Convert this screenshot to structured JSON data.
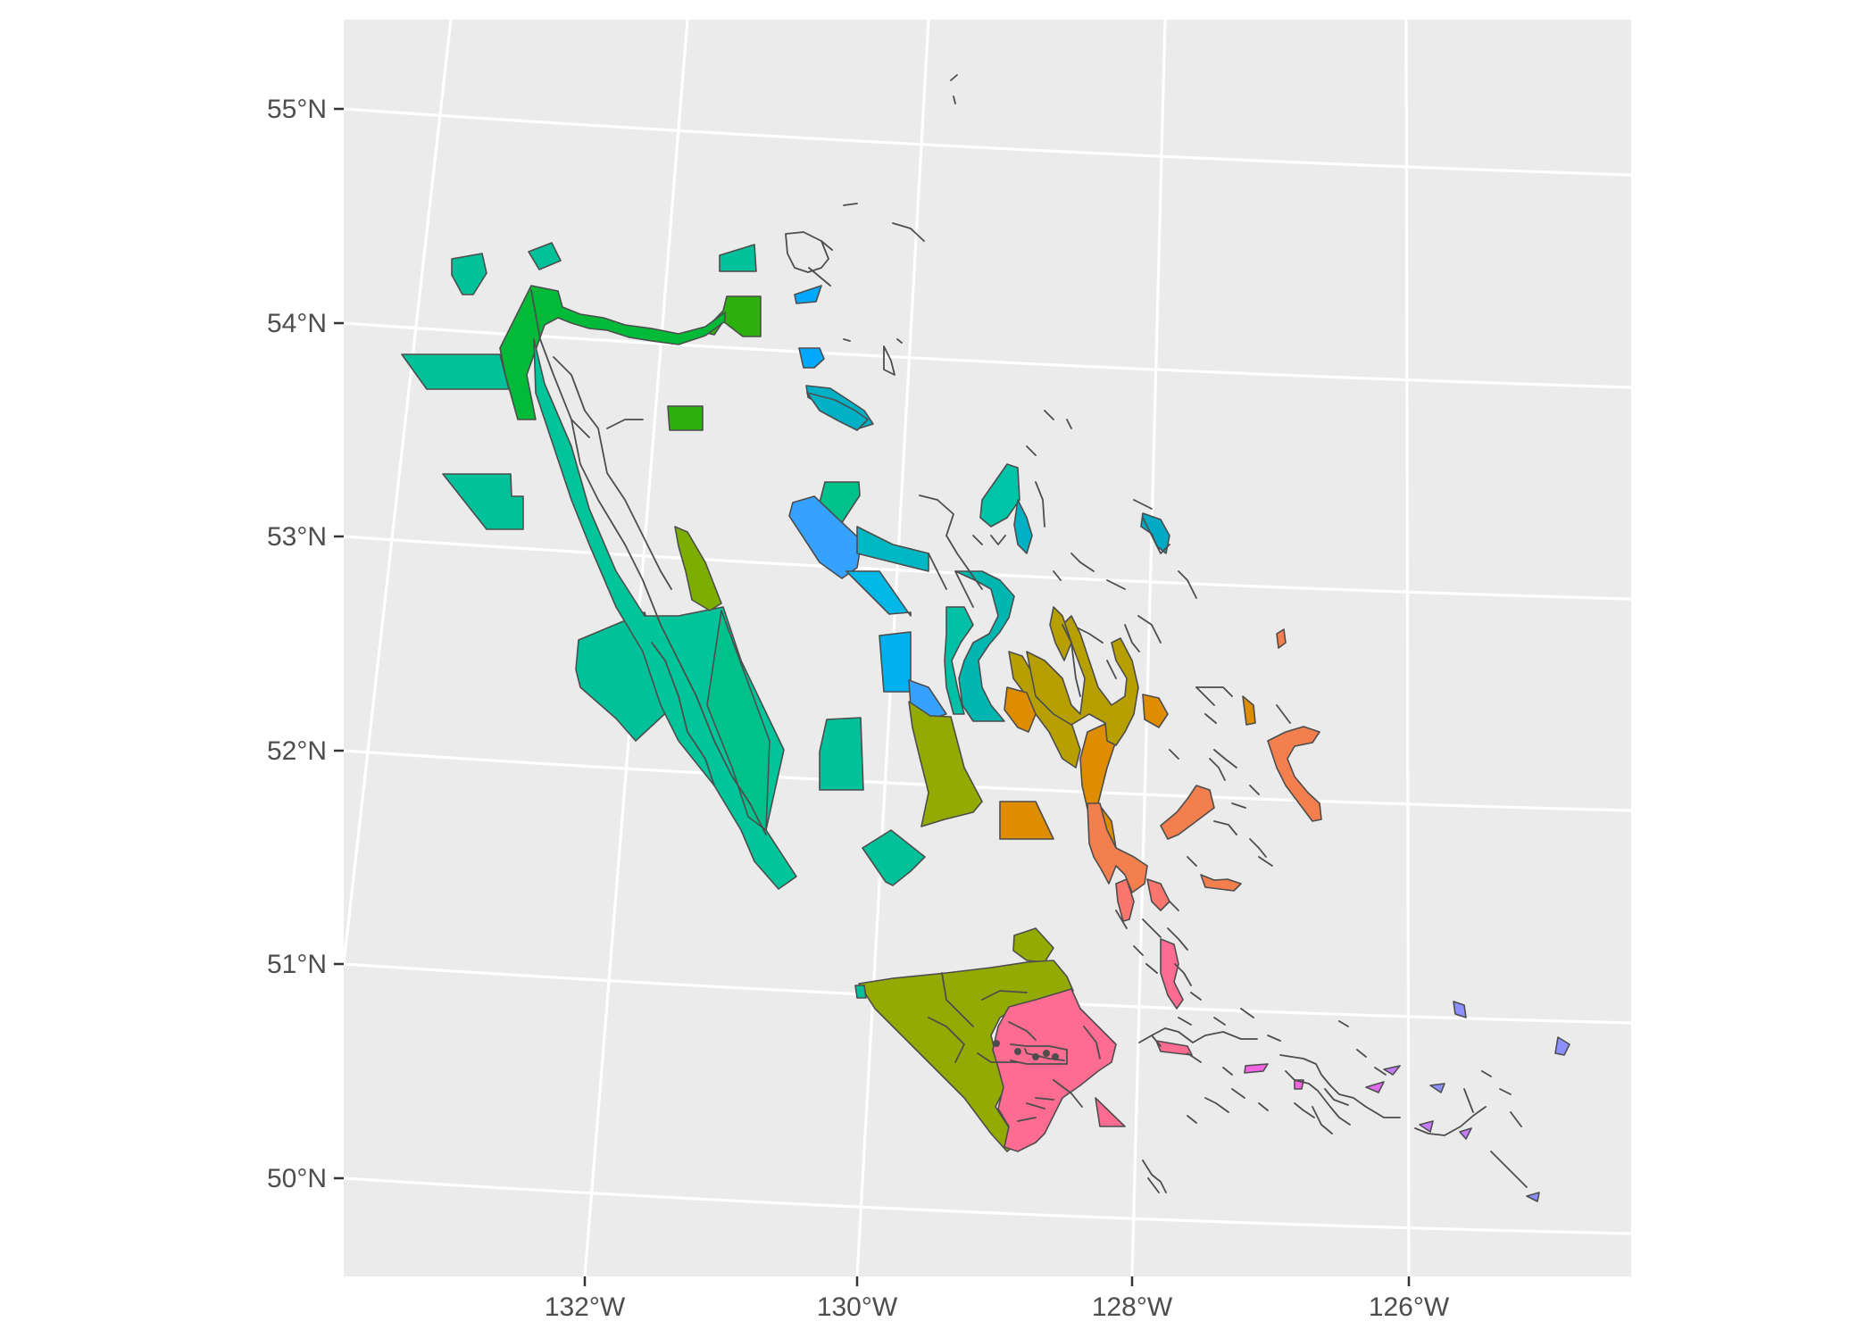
{
  "map": {
    "lat_labels": [
      "55°N",
      "54°N",
      "53°N",
      "52°N",
      "51°N",
      "50°N"
    ],
    "lon_labels": [
      "132°W",
      "130°W",
      "128°W",
      "126°W"
    ],
    "panel_background": "#ebebeb",
    "gridline_color": "#ffffff",
    "outline_color": "#4d4d4d",
    "palette": {
      "teal": "#00c19a",
      "green": "#00ba38",
      "bright_green": "#2cb10c",
      "mint": "#00c08b",
      "cyan": "#00b8e7",
      "sky_blue": "#00a9ff",
      "blue": "#35a2ff",
      "olive": "#93aa00",
      "olive_green": "#7cae00",
      "gold": "#de8c00",
      "yellow_olive": "#b79f00",
      "orange": "#f8766d",
      "salmon": "#f27f4d",
      "pink": "#ff6c91",
      "magenta": "#f564e3",
      "purple": "#c77cff",
      "violet": "#8c90ff"
    }
  }
}
